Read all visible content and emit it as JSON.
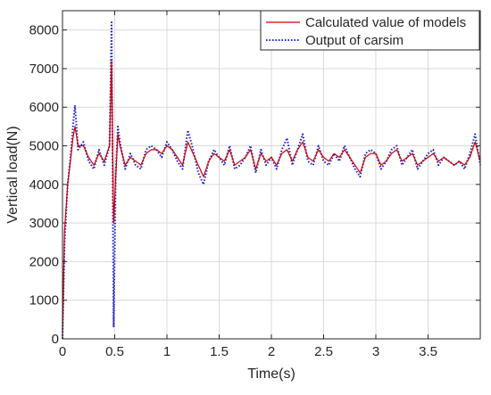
{
  "chart_data": {
    "type": "line",
    "title": "",
    "xlabel": "Time(s)",
    "ylabel": "Vertical load(N)",
    "xlim": [
      0,
      4
    ],
    "ylim": [
      0,
      8500
    ],
    "x_ticks": [
      0,
      0.5,
      1,
      1.5,
      2,
      2.5,
      3,
      3.5
    ],
    "x_tick_labels": [
      "0",
      "0.5",
      "1",
      "1.5",
      "2",
      "2.5",
      "3",
      "3.5"
    ],
    "y_ticks": [
      0,
      1000,
      2000,
      3000,
      4000,
      5000,
      6000,
      7000,
      8000
    ],
    "y_tick_labels": [
      "0",
      "1000",
      "2000",
      "3000",
      "4000",
      "5000",
      "6000",
      "7000",
      "8000"
    ],
    "grid": true,
    "legend_position": "top-right",
    "series": [
      {
        "name": "Calculated value of models",
        "color": "#cc0000",
        "line_style": "solid",
        "x": [
          0,
          0.02,
          0.05,
          0.08,
          0.1,
          0.12,
          0.15,
          0.2,
          0.25,
          0.3,
          0.35,
          0.4,
          0.45,
          0.47,
          0.49,
          0.51,
          0.53,
          0.55,
          0.6,
          0.65,
          0.7,
          0.75,
          0.8,
          0.85,
          0.9,
          0.95,
          1.0,
          1.05,
          1.1,
          1.15,
          1.2,
          1.25,
          1.3,
          1.35,
          1.4,
          1.45,
          1.5,
          1.55,
          1.6,
          1.65,
          1.7,
          1.75,
          1.8,
          1.85,
          1.9,
          1.95,
          2.0,
          2.05,
          2.1,
          2.15,
          2.2,
          2.25,
          2.3,
          2.35,
          2.4,
          2.45,
          2.5,
          2.55,
          2.6,
          2.65,
          2.7,
          2.75,
          2.8,
          2.85,
          2.9,
          2.95,
          3.0,
          3.05,
          3.1,
          3.15,
          3.2,
          3.25,
          3.3,
          3.35,
          3.4,
          3.45,
          3.5,
          3.55,
          3.6,
          3.65,
          3.7,
          3.75,
          3.8,
          3.85,
          3.9,
          3.95,
          4.0
        ],
        "y": [
          0,
          2800,
          4000,
          4700,
          5200,
          5500,
          5000,
          5000,
          4700,
          4500,
          4800,
          4600,
          5000,
          7200,
          3000,
          4200,
          5300,
          5000,
          4500,
          4700,
          4600,
          4500,
          4800,
          4900,
          4900,
          4800,
          5000,
          4900,
          4700,
          4500,
          5100,
          4800,
          4500,
          4200,
          4600,
          4800,
          4700,
          4600,
          4900,
          4500,
          4600,
          4700,
          4900,
          4400,
          4800,
          4600,
          4700,
          4500,
          4800,
          4900,
          4600,
          4900,
          5100,
          4700,
          4600,
          4900,
          4700,
          4600,
          4800,
          4700,
          4900,
          4700,
          4500,
          4300,
          4700,
          4800,
          4800,
          4500,
          4600,
          4800,
          4900,
          4600,
          4700,
          4800,
          4500,
          4600,
          4700,
          4800,
          4600,
          4700,
          4600,
          4500,
          4600,
          4500,
          4700,
          5100,
          4600
        ]
      },
      {
        "name": "Output of carsim",
        "color": "#1a1acc",
        "line_style": "dotted",
        "x": [
          0,
          0.02,
          0.05,
          0.08,
          0.1,
          0.12,
          0.15,
          0.2,
          0.25,
          0.3,
          0.35,
          0.4,
          0.45,
          0.47,
          0.49,
          0.51,
          0.53,
          0.55,
          0.6,
          0.65,
          0.7,
          0.75,
          0.8,
          0.85,
          0.9,
          0.95,
          1.0,
          1.05,
          1.1,
          1.15,
          1.2,
          1.25,
          1.3,
          1.35,
          1.4,
          1.45,
          1.5,
          1.55,
          1.6,
          1.65,
          1.7,
          1.75,
          1.8,
          1.85,
          1.9,
          1.95,
          2.0,
          2.05,
          2.1,
          2.15,
          2.2,
          2.25,
          2.3,
          2.35,
          2.4,
          2.45,
          2.5,
          2.55,
          2.6,
          2.65,
          2.7,
          2.75,
          2.8,
          2.85,
          2.9,
          2.95,
          3.0,
          3.05,
          3.1,
          3.15,
          3.2,
          3.25,
          3.3,
          3.35,
          3.4,
          3.45,
          3.5,
          3.55,
          3.6,
          3.65,
          3.7,
          3.75,
          3.8,
          3.85,
          3.9,
          3.95,
          4.0
        ],
        "y": [
          0,
          2500,
          4000,
          4800,
          5500,
          6050,
          4900,
          5100,
          4600,
          4400,
          4900,
          4500,
          5000,
          8200,
          300,
          4300,
          5500,
          5100,
          4400,
          4800,
          4500,
          4400,
          4900,
          5000,
          4900,
          4700,
          5100,
          4900,
          4600,
          4400,
          5400,
          4900,
          4300,
          4000,
          4600,
          4900,
          4700,
          4500,
          5000,
          4400,
          4500,
          4700,
          5000,
          4300,
          4900,
          4500,
          4700,
          4400,
          4900,
          5200,
          4500,
          4900,
          5300,
          4600,
          4500,
          5000,
          4600,
          4500,
          4800,
          4600,
          5000,
          4700,
          4400,
          4200,
          4800,
          4900,
          4800,
          4400,
          4600,
          4900,
          5000,
          4500,
          4700,
          4900,
          4400,
          4600,
          4800,
          4900,
          4500,
          4700,
          4600,
          4500,
          4600,
          4400,
          4800,
          5300,
          4500
        ]
      }
    ]
  }
}
